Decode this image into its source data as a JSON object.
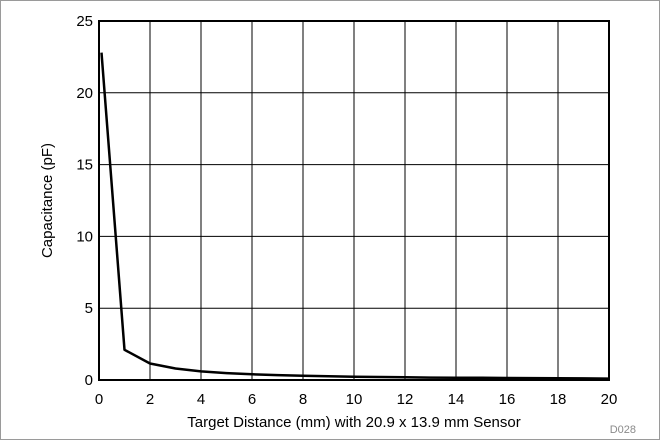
{
  "chart_data": {
    "type": "line",
    "title": "",
    "xlabel": "Target Distance (mm) with 20.9 x 13.9 mm Sensor",
    "ylabel": "Capacitance (pF)",
    "xlim": [
      0,
      20
    ],
    "ylim": [
      0,
      25
    ],
    "x_ticks": [
      "0",
      "2",
      "4",
      "6",
      "8",
      "10",
      "12",
      "14",
      "16",
      "18",
      "20"
    ],
    "y_ticks": [
      "0",
      "5",
      "10",
      "15",
      "20",
      "25"
    ],
    "grid": true,
    "legend": "none",
    "series": [
      {
        "color": "#000000",
        "x": [
          0.1,
          1,
          2,
          3,
          4,
          5,
          6,
          7,
          8,
          9,
          10,
          11,
          12,
          13,
          14,
          15,
          16,
          17,
          18,
          19,
          20
        ],
        "y": [
          22.8,
          2.1,
          1.15,
          0.8,
          0.6,
          0.48,
          0.4,
          0.34,
          0.29,
          0.26,
          0.23,
          0.21,
          0.19,
          0.17,
          0.16,
          0.15,
          0.14,
          0.13,
          0.12,
          0.11,
          0.1
        ]
      }
    ]
  },
  "figure_code": "D028"
}
